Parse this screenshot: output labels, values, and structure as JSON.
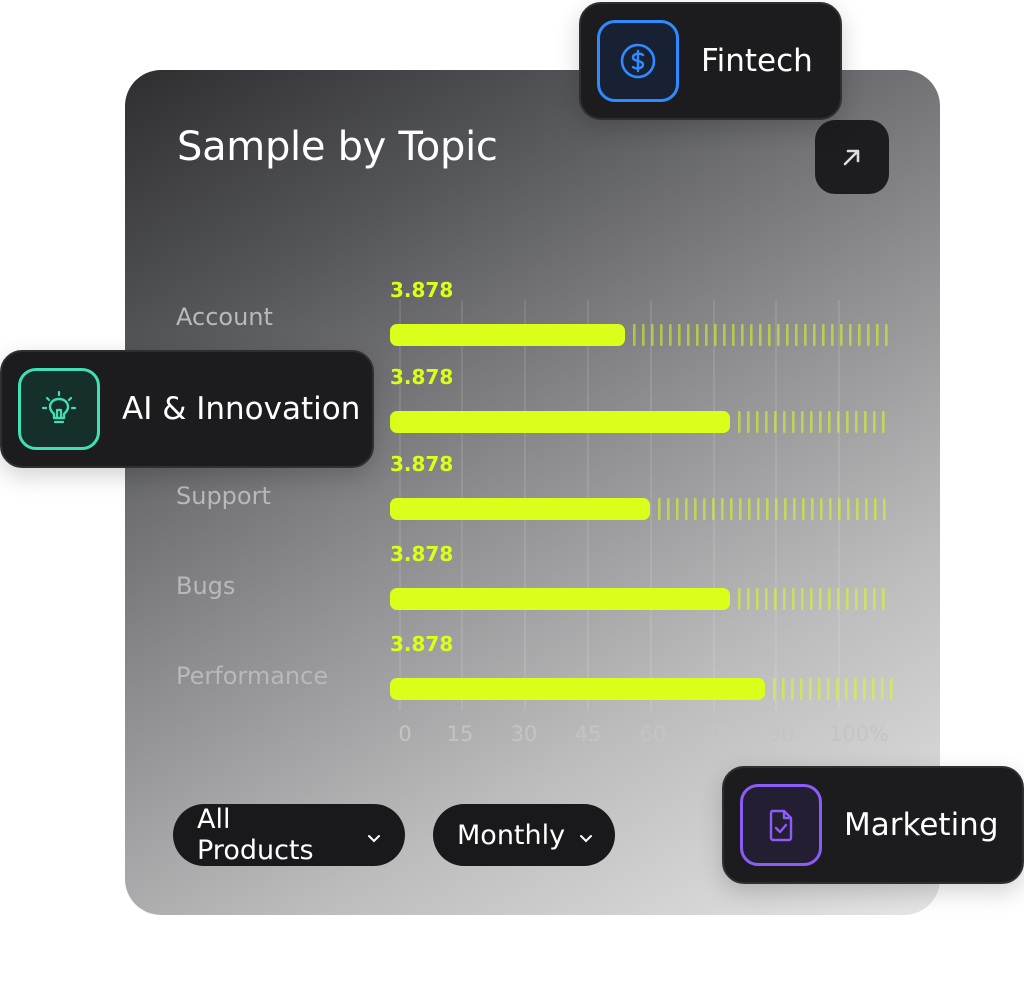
{
  "card": {
    "title": "Sample by Topic",
    "expand_icon": "arrow-up-right-icon"
  },
  "chart_data": {
    "type": "bar",
    "orientation": "horizontal",
    "title": "Sample by Topic",
    "categories": [
      "Account",
      "AI & Innovation",
      "Support",
      "Bugs",
      "Performance"
    ],
    "values": [
      47,
      68,
      52,
      68,
      75
    ],
    "data_labels": [
      "3.878",
      "3.878",
      "3.878",
      "3.878",
      "3.878"
    ],
    "xlim": [
      0,
      100
    ],
    "x_ticks": [
      "0",
      "15",
      "30",
      "45",
      "60",
      "75",
      "90",
      "100%"
    ],
    "grid": true,
    "bar_color": "#dbff1a"
  },
  "filters": {
    "product": "All Products",
    "period": "Monthly",
    "chevron_icon": "chevron-down-icon"
  },
  "tags": {
    "fintech": {
      "label": "Fintech",
      "icon": "dollar-circle-icon",
      "color": "#2f8bff"
    },
    "ai": {
      "label": "AI & Innovation",
      "icon": "lightbulb-icon",
      "color": "#3fe0b5"
    },
    "marketing": {
      "label": "Marketing",
      "icon": "document-check-icon",
      "color": "#8c5cf6"
    }
  }
}
